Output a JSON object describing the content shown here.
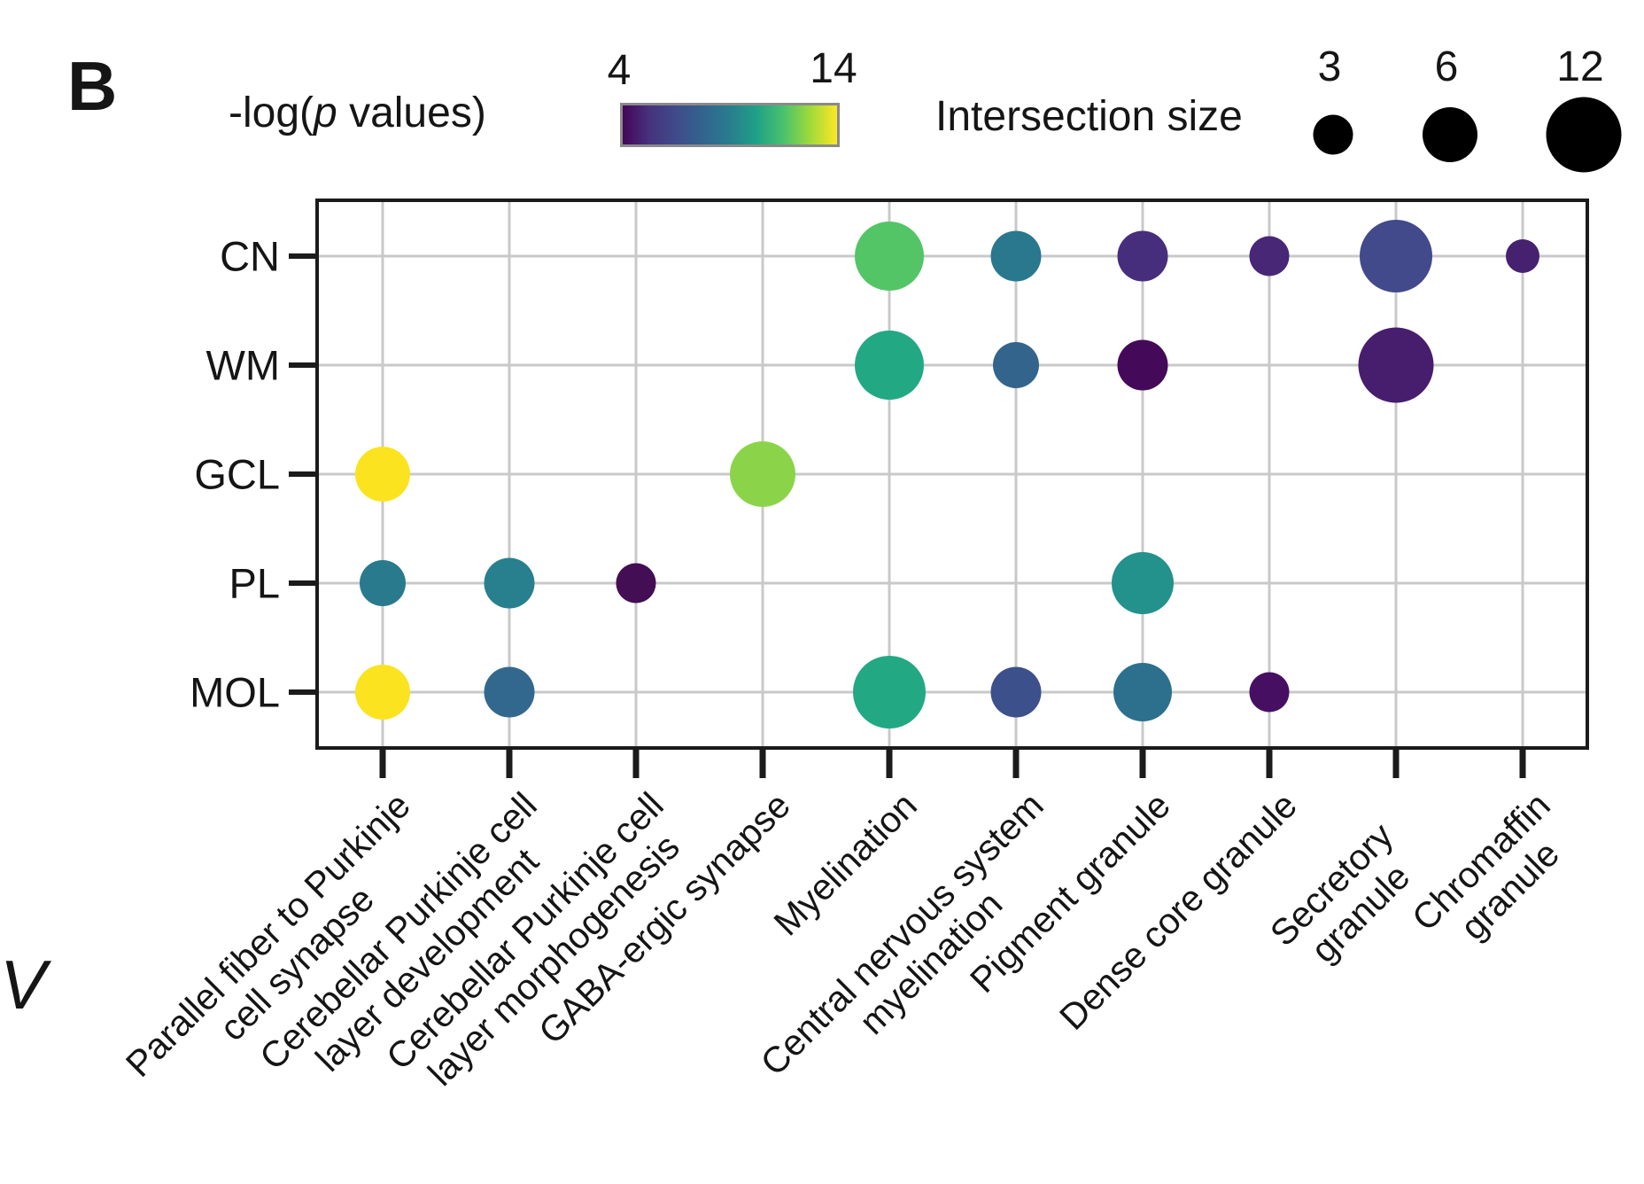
{
  "panel_label": "B",
  "colorbar_legend": {
    "label_prefix": "-log(",
    "label_p": "p",
    "label_suffix": " values)",
    "min_label": "4",
    "max_label": "14",
    "gradient": [
      "#440658",
      "#46327e",
      "#3f4b8b",
      "#32648e",
      "#287d8e",
      "#1fa187",
      "#4ac16d",
      "#a0da39",
      "#fde725"
    ]
  },
  "size_legend": {
    "title": "Intersection size",
    "dot_color": "#000000",
    "items": [
      {
        "label": "3",
        "n": 3
      },
      {
        "label": "6",
        "n": 6
      },
      {
        "label": "12",
        "n": 12
      }
    ]
  },
  "stray_text": "V",
  "styles": {
    "grid_color": "#c9c9c9",
    "border_color": "#1b1b1b",
    "text_color": "#151515"
  },
  "chart_data": {
    "type": "scatter",
    "title": "",
    "xlabel": "",
    "ylabel": "",
    "grid": true,
    "color_scale": {
      "name": "viridis",
      "label": "-log(p values)",
      "domain": [
        4,
        14
      ]
    },
    "size_scale": {
      "label": "Intersection size",
      "values": [
        3,
        6,
        12
      ]
    },
    "y_categories": [
      "CN",
      "WM",
      "GCL",
      "PL",
      "MOL"
    ],
    "x_categories": [
      "Parallel fiber to Purkinje\ncell synapse",
      "Cerebellar Purkinje cell\nlayer development",
      "Cerebellar Purkinje cell\nlayer morphogenesis",
      "GABA-ergic synapse",
      "Myelination",
      "Central nervous system\nmyelination",
      "Pigment granule",
      "Dense core granule",
      "Secretory granule",
      "Chromaffin granule"
    ],
    "points": [
      {
        "y": "CN",
        "x": "Myelination",
        "neg_log_p": 12,
        "intersection_size": 10,
        "color": "#53c567"
      },
      {
        "y": "CN",
        "x": "Central nervous system\nmyelination",
        "neg_log_p": 9,
        "intersection_size": 5,
        "color": "#2a788e"
      },
      {
        "y": "CN",
        "x": "Pigment granule",
        "neg_log_p": 6,
        "intersection_size": 5,
        "color": "#472e7c"
      },
      {
        "y": "CN",
        "x": "Dense core granule",
        "neg_log_p": 6,
        "intersection_size": 3,
        "color": "#482777"
      },
      {
        "y": "CN",
        "x": "Secretory granule",
        "neg_log_p": 7,
        "intersection_size": 11,
        "color": "#424a8c"
      },
      {
        "y": "CN",
        "x": "Chromaffin granule",
        "neg_log_p": 5,
        "intersection_size": 2,
        "color": "#46216f"
      },
      {
        "y": "WM",
        "x": "Myelination",
        "neg_log_p": 11,
        "intersection_size": 10,
        "color": "#23a884"
      },
      {
        "y": "WM",
        "x": "Central nervous system\nmyelination",
        "neg_log_p": 8,
        "intersection_size": 4,
        "color": "#33658c"
      },
      {
        "y": "WM",
        "x": "Pigment granule",
        "neg_log_p": 4,
        "intersection_size": 5,
        "color": "#45095a"
      },
      {
        "y": "WM",
        "x": "Secretory granule",
        "neg_log_p": 5,
        "intersection_size": 12,
        "color": "#471d6d"
      },
      {
        "y": "GCL",
        "x": "Parallel fiber to Purkinje\ncell synapse",
        "neg_log_p": 14,
        "intersection_size": 6,
        "color": "#fbe31f"
      },
      {
        "y": "GCL",
        "x": "GABA-ergic synapse",
        "neg_log_p": 13,
        "intersection_size": 9,
        "color": "#8bd44a"
      },
      {
        "y": "PL",
        "x": "Parallel fiber to Purkinje\ncell synapse",
        "neg_log_p": 9,
        "intersection_size": 4,
        "color": "#2a7a8e"
      },
      {
        "y": "PL",
        "x": "Cerebellar Purkinje cell\nlayer development",
        "neg_log_p": 9,
        "intersection_size": 5,
        "color": "#287f8e"
      },
      {
        "y": "PL",
        "x": "Cerebellar Purkinje cell\nlayer morphogenesis",
        "neg_log_p": 4,
        "intersection_size": 3,
        "color": "#430e54"
      },
      {
        "y": "PL",
        "x": "Pigment granule",
        "neg_log_p": 10,
        "intersection_size": 8,
        "color": "#23918c"
      },
      {
        "y": "MOL",
        "x": "Parallel fiber to Purkinje\ncell synapse",
        "neg_log_p": 14,
        "intersection_size": 6,
        "color": "#fbe31f"
      },
      {
        "y": "MOL",
        "x": "Cerebellar Purkinje cell\nlayer development",
        "neg_log_p": 8,
        "intersection_size": 5,
        "color": "#33688e"
      },
      {
        "y": "MOL",
        "x": "Myelination",
        "neg_log_p": 11,
        "intersection_size": 11,
        "color": "#23a884"
      },
      {
        "y": "MOL",
        "x": "Central nervous system\nmyelination",
        "neg_log_p": 7,
        "intersection_size": 5,
        "color": "#3c508b"
      },
      {
        "y": "MOL",
        "x": "Pigment granule",
        "neg_log_p": 8,
        "intersection_size": 7,
        "color": "#2d708e"
      },
      {
        "y": "MOL",
        "x": "Dense core granule",
        "neg_log_p": 5,
        "intersection_size": 3,
        "color": "#470f62"
      }
    ]
  }
}
